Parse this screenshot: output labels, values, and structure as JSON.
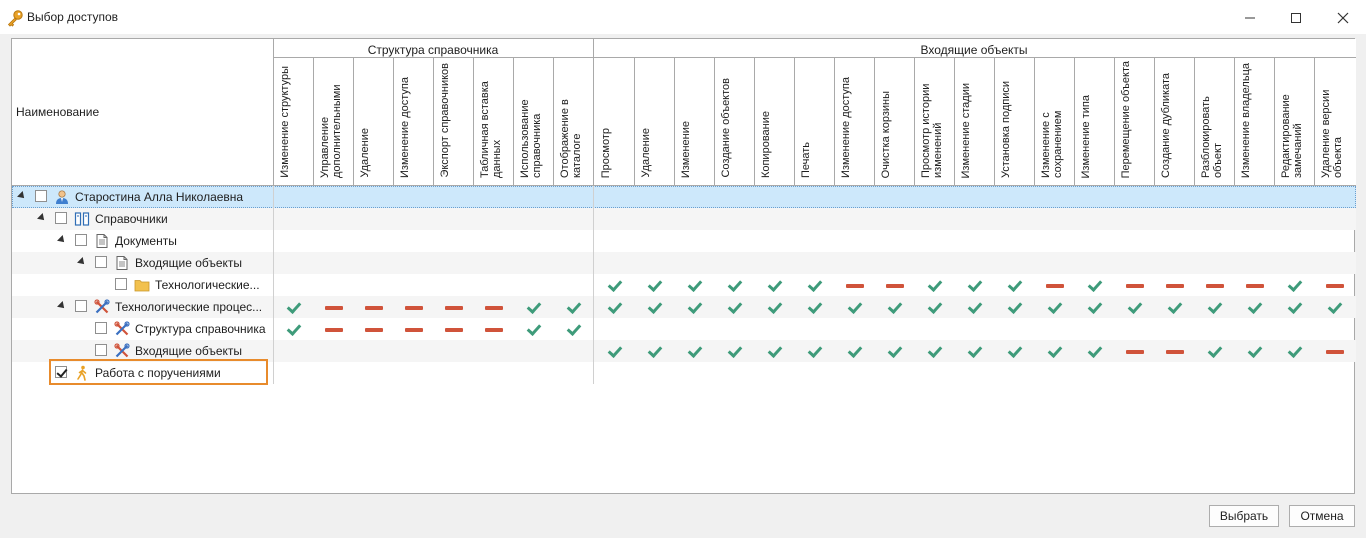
{
  "window": {
    "title": "Выбор доступов",
    "icon": "key-icon",
    "controls": [
      "minimize-icon",
      "maximize-icon",
      "close-icon"
    ]
  },
  "header": {
    "name_column": "Наименование",
    "bands": [
      {
        "title": "Структура справочника",
        "columns": [
          "Изменение структуры",
          "Управление дополнительными",
          "Удаление",
          "Изменение доступа",
          "Экспорт справочников",
          "Табличная вставка данных",
          "Использование справочника",
          "Отображение в каталоге"
        ]
      },
      {
        "title": "Входящие объекты",
        "columns": [
          "Просмотр",
          "Удаление",
          "Изменение",
          "Создание объектов",
          "Копирование",
          "Печать",
          "Изменение доступа",
          "Очистка корзины",
          "Просмотр истории изменений",
          "Изменение стадии",
          "Установка подписи",
          "Изменение с сохранением",
          "Изменение типа",
          "Перемещение объекта",
          "Создание дубликата",
          "Разблокировать объект",
          "Изменение владельца",
          "Редактирование замечаний",
          "Удаление версии объекта"
        ]
      }
    ]
  },
  "rows": [
    {
      "label": "Старостина Алла Николаевна",
      "level": 0,
      "icon": "user-icon",
      "expanded": true,
      "checked": false,
      "selected": true,
      "structure": [],
      "incoming": []
    },
    {
      "label": "Справочники",
      "level": 1,
      "icon": "catalog-icon",
      "expanded": true,
      "checked": false,
      "structure": [],
      "incoming": []
    },
    {
      "label": "Документы",
      "level": 2,
      "icon": "document-icon",
      "expanded": true,
      "checked": false,
      "structure": [],
      "incoming": []
    },
    {
      "label": "Входящие объекты",
      "level": 3,
      "icon": "document-icon",
      "expanded": true,
      "checked": false,
      "structure": [],
      "incoming": []
    },
    {
      "label": "Технологические...",
      "level": 4,
      "icon": "folder-icon",
      "expanded": null,
      "checked": false,
      "structure": [],
      "incoming": [
        "yes",
        "yes",
        "yes",
        "yes",
        "yes",
        "yes",
        "no",
        "no",
        "yes",
        "yes",
        "yes",
        "no",
        "yes",
        "no",
        "no",
        "no",
        "no",
        "yes",
        "no"
      ]
    },
    {
      "label": "Технологические процес...",
      "level": 2,
      "icon": "tools-icon",
      "expanded": true,
      "checked": false,
      "structure": [
        "yes",
        "no",
        "no",
        "no",
        "no",
        "no",
        "yes",
        "yes"
      ],
      "incoming": [
        "yes",
        "yes",
        "yes",
        "yes",
        "yes",
        "yes",
        "yes",
        "yes",
        "yes",
        "yes",
        "yes",
        "yes",
        "yes",
        "yes",
        "yes",
        "yes",
        "yes",
        "yes",
        "yes"
      ]
    },
    {
      "label": "Структура справочника",
      "level": 3,
      "icon": "tools-icon",
      "expanded": null,
      "checked": false,
      "structure": [
        "yes",
        "no",
        "no",
        "no",
        "no",
        "no",
        "yes",
        "yes"
      ],
      "incoming": []
    },
    {
      "label": "Входящие объекты",
      "level": 3,
      "icon": "tools-icon",
      "expanded": null,
      "checked": false,
      "structure": [],
      "incoming": [
        "yes",
        "yes",
        "yes",
        "yes",
        "yes",
        "yes",
        "yes",
        "yes",
        "yes",
        "yes",
        "yes",
        "yes",
        "yes",
        "no",
        "no",
        "yes",
        "yes",
        "yes",
        "no"
      ]
    },
    {
      "label": "Работа с поручениями",
      "level": 1,
      "icon": "walker-icon",
      "expanded": null,
      "checked": true,
      "structure": [],
      "incoming": []
    }
  ],
  "buttons": {
    "ok": "Выбрать",
    "cancel": "Отмена"
  },
  "colors": {
    "allowed": "#3e9b7a",
    "denied": "#d0533a",
    "selection": "#cde8fb",
    "focus_border": "#e88b2c"
  }
}
